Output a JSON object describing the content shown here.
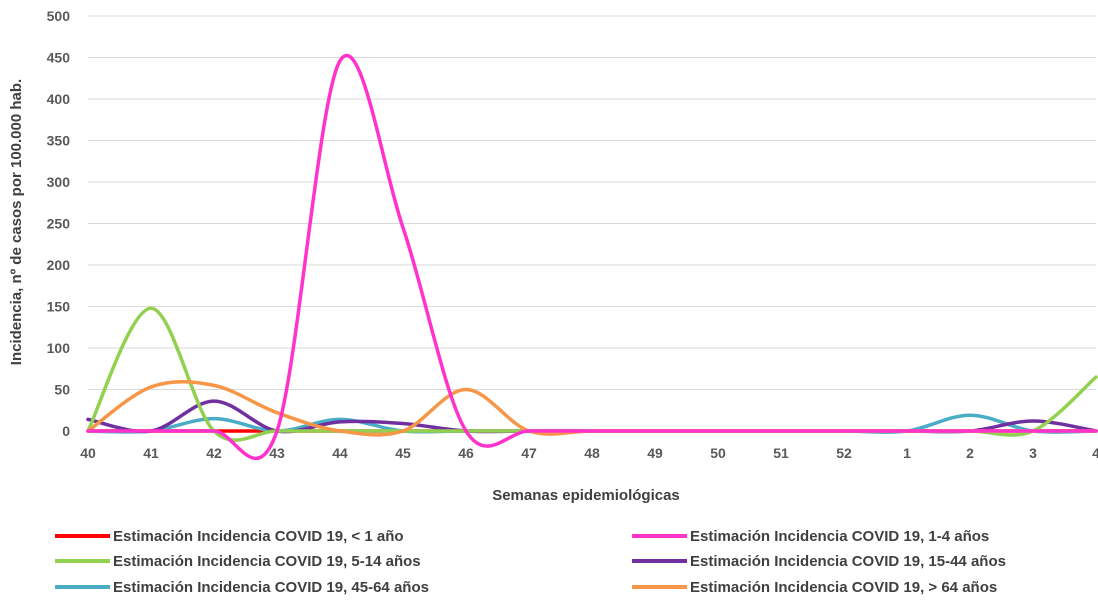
{
  "chart_data": {
    "type": "line",
    "title": "",
    "xlabel": "Semanas epidemiológicas",
    "ylabel": "Incidencia, nº de casos por 100.000 hab.",
    "ylim": [
      0,
      500
    ],
    "yticks": [
      "0",
      "50",
      "100",
      "150",
      "200",
      "250",
      "300",
      "350",
      "400",
      "450",
      "500"
    ],
    "categories": [
      "40",
      "41",
      "42",
      "43",
      "44",
      "45",
      "46",
      "47",
      "48",
      "49",
      "50",
      "51",
      "52",
      "1",
      "2",
      "3",
      "4"
    ],
    "grid": true,
    "smooth": true,
    "legend_position": "bottom",
    "series": [
      {
        "name": "Estimación Incidencia COVID 19, < 1 año",
        "color": "#ff0000",
        "values": [
          0,
          0,
          0,
          0,
          0,
          0,
          0,
          0,
          0,
          0,
          0,
          0,
          0,
          0,
          0,
          0,
          0
        ]
      },
      {
        "name": "Estimación Incidencia COVID 19, 1-4 años",
        "color": "#ff33cc",
        "values": [
          0,
          0,
          0,
          0,
          446,
          245,
          0,
          0,
          0,
          0,
          0,
          0,
          0,
          0,
          0,
          0,
          0
        ]
      },
      {
        "name": "Estimación Incidencia COVID 19, 5-14 años",
        "color": "#92d050",
        "values": [
          0,
          148,
          0,
          0,
          0,
          0,
          0,
          0,
          0,
          0,
          0,
          0,
          0,
          0,
          0,
          0,
          65
        ]
      },
      {
        "name": "Estimación Incidencia COVID 19, 15-44 años",
        "color": "#7030a0",
        "values": [
          14,
          0,
          36,
          0,
          11,
          9,
          0,
          0,
          0,
          0,
          0,
          0,
          0,
          0,
          0,
          12,
          0
        ]
      },
      {
        "name": "Estimación Incidencia COVID 19, 45-64 años",
        "color": "#4bacc6",
        "values": [
          0,
          0,
          15,
          0,
          14,
          0,
          0,
          0,
          0,
          0,
          0,
          0,
          0,
          0,
          19,
          0,
          0
        ]
      },
      {
        "name": "Estimación Incidencia COVID 19, > 64 años",
        "color": "#f79646",
        "values": [
          0,
          53,
          55,
          22,
          0,
          0,
          50,
          0,
          0,
          0,
          0,
          0,
          0,
          0,
          0,
          0,
          0
        ]
      }
    ]
  }
}
